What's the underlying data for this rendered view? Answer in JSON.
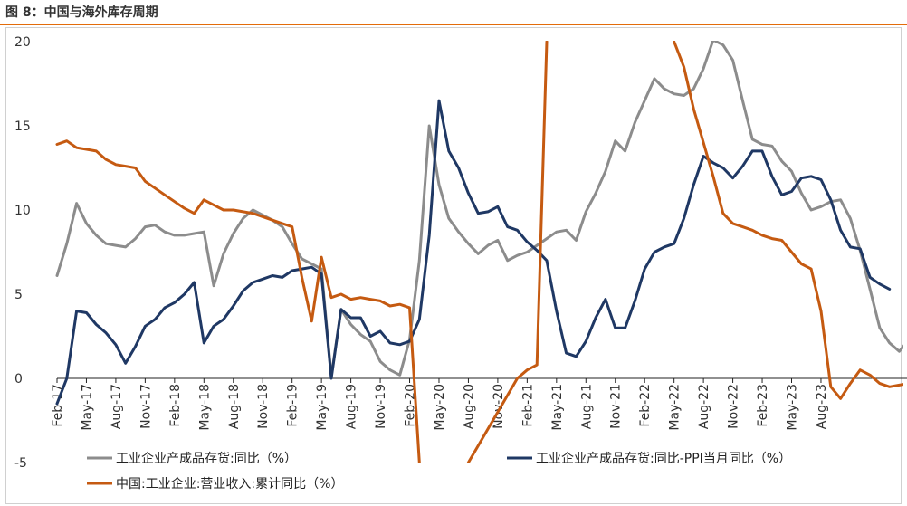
{
  "title": "图 8：中国与海外库存周期",
  "chart_data": {
    "type": "line",
    "title": "图 8：中国与海外库存周期",
    "xlabel": "",
    "ylabel": "",
    "ylim": [
      -5,
      20
    ],
    "yticks": [
      "20",
      "15",
      "10",
      "5",
      "0",
      "-5"
    ],
    "xtick_labels": [
      "Feb-17",
      "May-17",
      "Aug-17",
      "Nov-17",
      "Feb-18",
      "May-18",
      "Aug-18",
      "Nov-18",
      "Feb-19",
      "May-19",
      "Aug-19",
      "Nov-19",
      "Feb-20",
      "May-20",
      "Aug-20",
      "Nov-20",
      "Feb-21",
      "May-21",
      "Aug-21",
      "Nov-21",
      "Feb-22",
      "May-22",
      "Aug-22",
      "Nov-22",
      "Feb-23",
      "May-23",
      "Aug-23"
    ],
    "x_start": "Feb-17",
    "legend_position": "bottom",
    "series": [
      {
        "name": "工业企业产成品存货:同比（%）",
        "color": "#8c8c8c",
        "values": [
          6.1,
          8.0,
          10.4,
          9.2,
          8.5,
          8.0,
          7.9,
          7.8,
          8.3,
          9.0,
          9.1,
          8.7,
          8.5,
          8.5,
          8.6,
          8.7,
          5.5,
          7.4,
          8.6,
          9.5,
          10.0,
          9.7,
          9.4,
          9.0,
          8.0,
          7.1,
          6.8,
          6.5,
          0.1,
          4.1,
          3.2,
          2.6,
          2.2,
          1.0,
          0.5,
          0.2,
          2.3,
          7.0,
          15.0,
          11.5,
          9.5,
          8.7,
          8.0,
          7.4,
          7.9,
          8.2,
          7.0,
          7.3,
          7.5,
          7.9,
          8.3,
          8.7,
          8.8,
          8.2,
          9.9,
          11.0,
          12.3,
          14.1,
          13.5,
          15.2,
          16.5,
          17.8,
          17.2,
          16.9,
          16.8,
          17.2,
          18.4,
          20.1,
          19.8,
          18.9,
          16.5,
          14.2,
          13.9,
          13.8,
          12.9,
          12.3,
          11.0,
          10.0,
          10.2,
          10.5,
          10.6,
          9.5,
          7.6,
          5.3,
          3.0,
          2.1,
          1.6,
          2.3
        ]
      },
      {
        "name": "工业企业产成品存货:同比-PPI当月同比（%）",
        "color": "#1f3864",
        "values": [
          -1.5,
          0.0,
          4.0,
          3.9,
          3.2,
          2.7,
          2.0,
          0.9,
          1.9,
          3.1,
          3.5,
          4.2,
          4.5,
          5.0,
          5.7,
          2.1,
          3.1,
          3.5,
          4.3,
          5.2,
          5.7,
          5.9,
          6.1,
          6.0,
          6.4,
          6.5,
          6.6,
          6.2,
          0.0,
          4.1,
          3.6,
          3.6,
          2.5,
          2.8,
          2.1,
          2.0,
          2.2,
          3.5,
          8.5,
          16.5,
          13.5,
          12.5,
          11.0,
          9.8,
          9.9,
          10.2,
          9.0,
          8.8,
          8.1,
          7.6,
          7.0,
          4.0,
          1.5,
          1.3,
          2.2,
          3.6,
          4.7,
          3.0,
          3.0,
          4.6,
          6.5,
          7.5,
          7.8,
          8.0,
          9.5,
          11.5,
          13.2,
          12.8,
          12.5,
          11.9,
          12.6,
          13.5,
          13.5,
          12.0,
          10.9,
          11.1,
          11.9,
          12.0,
          11.8,
          10.6,
          8.8,
          7.8,
          7.7,
          6.0,
          5.6,
          5.3
        ]
      },
      {
        "name": "中国:工业企业:营业收入:累计同比（%）",
        "color": "#c55a11",
        "values": [
          13.9,
          14.1,
          13.7,
          13.6,
          13.5,
          13.0,
          12.7,
          12.6,
          12.5,
          11.7,
          11.3,
          10.9,
          10.5,
          10.1,
          9.8,
          10.6,
          10.3,
          10.0,
          10.0,
          9.9,
          9.8,
          9.6,
          9.4,
          9.2,
          9.0,
          6.0,
          3.4,
          7.2,
          4.8,
          5.0,
          4.7,
          4.8,
          4.7,
          4.6,
          4.3,
          4.4,
          4.2,
          -5.0,
          null,
          null,
          null,
          null,
          -5.0,
          -4.0,
          -3.0,
          -2.0,
          -1.0,
          0.0,
          0.5,
          0.8,
          20.0,
          null,
          null,
          null,
          null,
          null,
          null,
          null,
          null,
          null,
          null,
          null,
          null,
          20.0,
          18.5,
          16.0,
          14.0,
          12.0,
          9.8,
          9.2,
          9.0,
          8.8,
          8.5,
          8.3,
          8.2,
          7.5,
          6.8,
          6.5,
          4.0,
          -0.5,
          -1.2,
          -0.3,
          0.5,
          0.2,
          -0.3,
          -0.5,
          -0.4,
          -0.3
        ]
      }
    ]
  }
}
